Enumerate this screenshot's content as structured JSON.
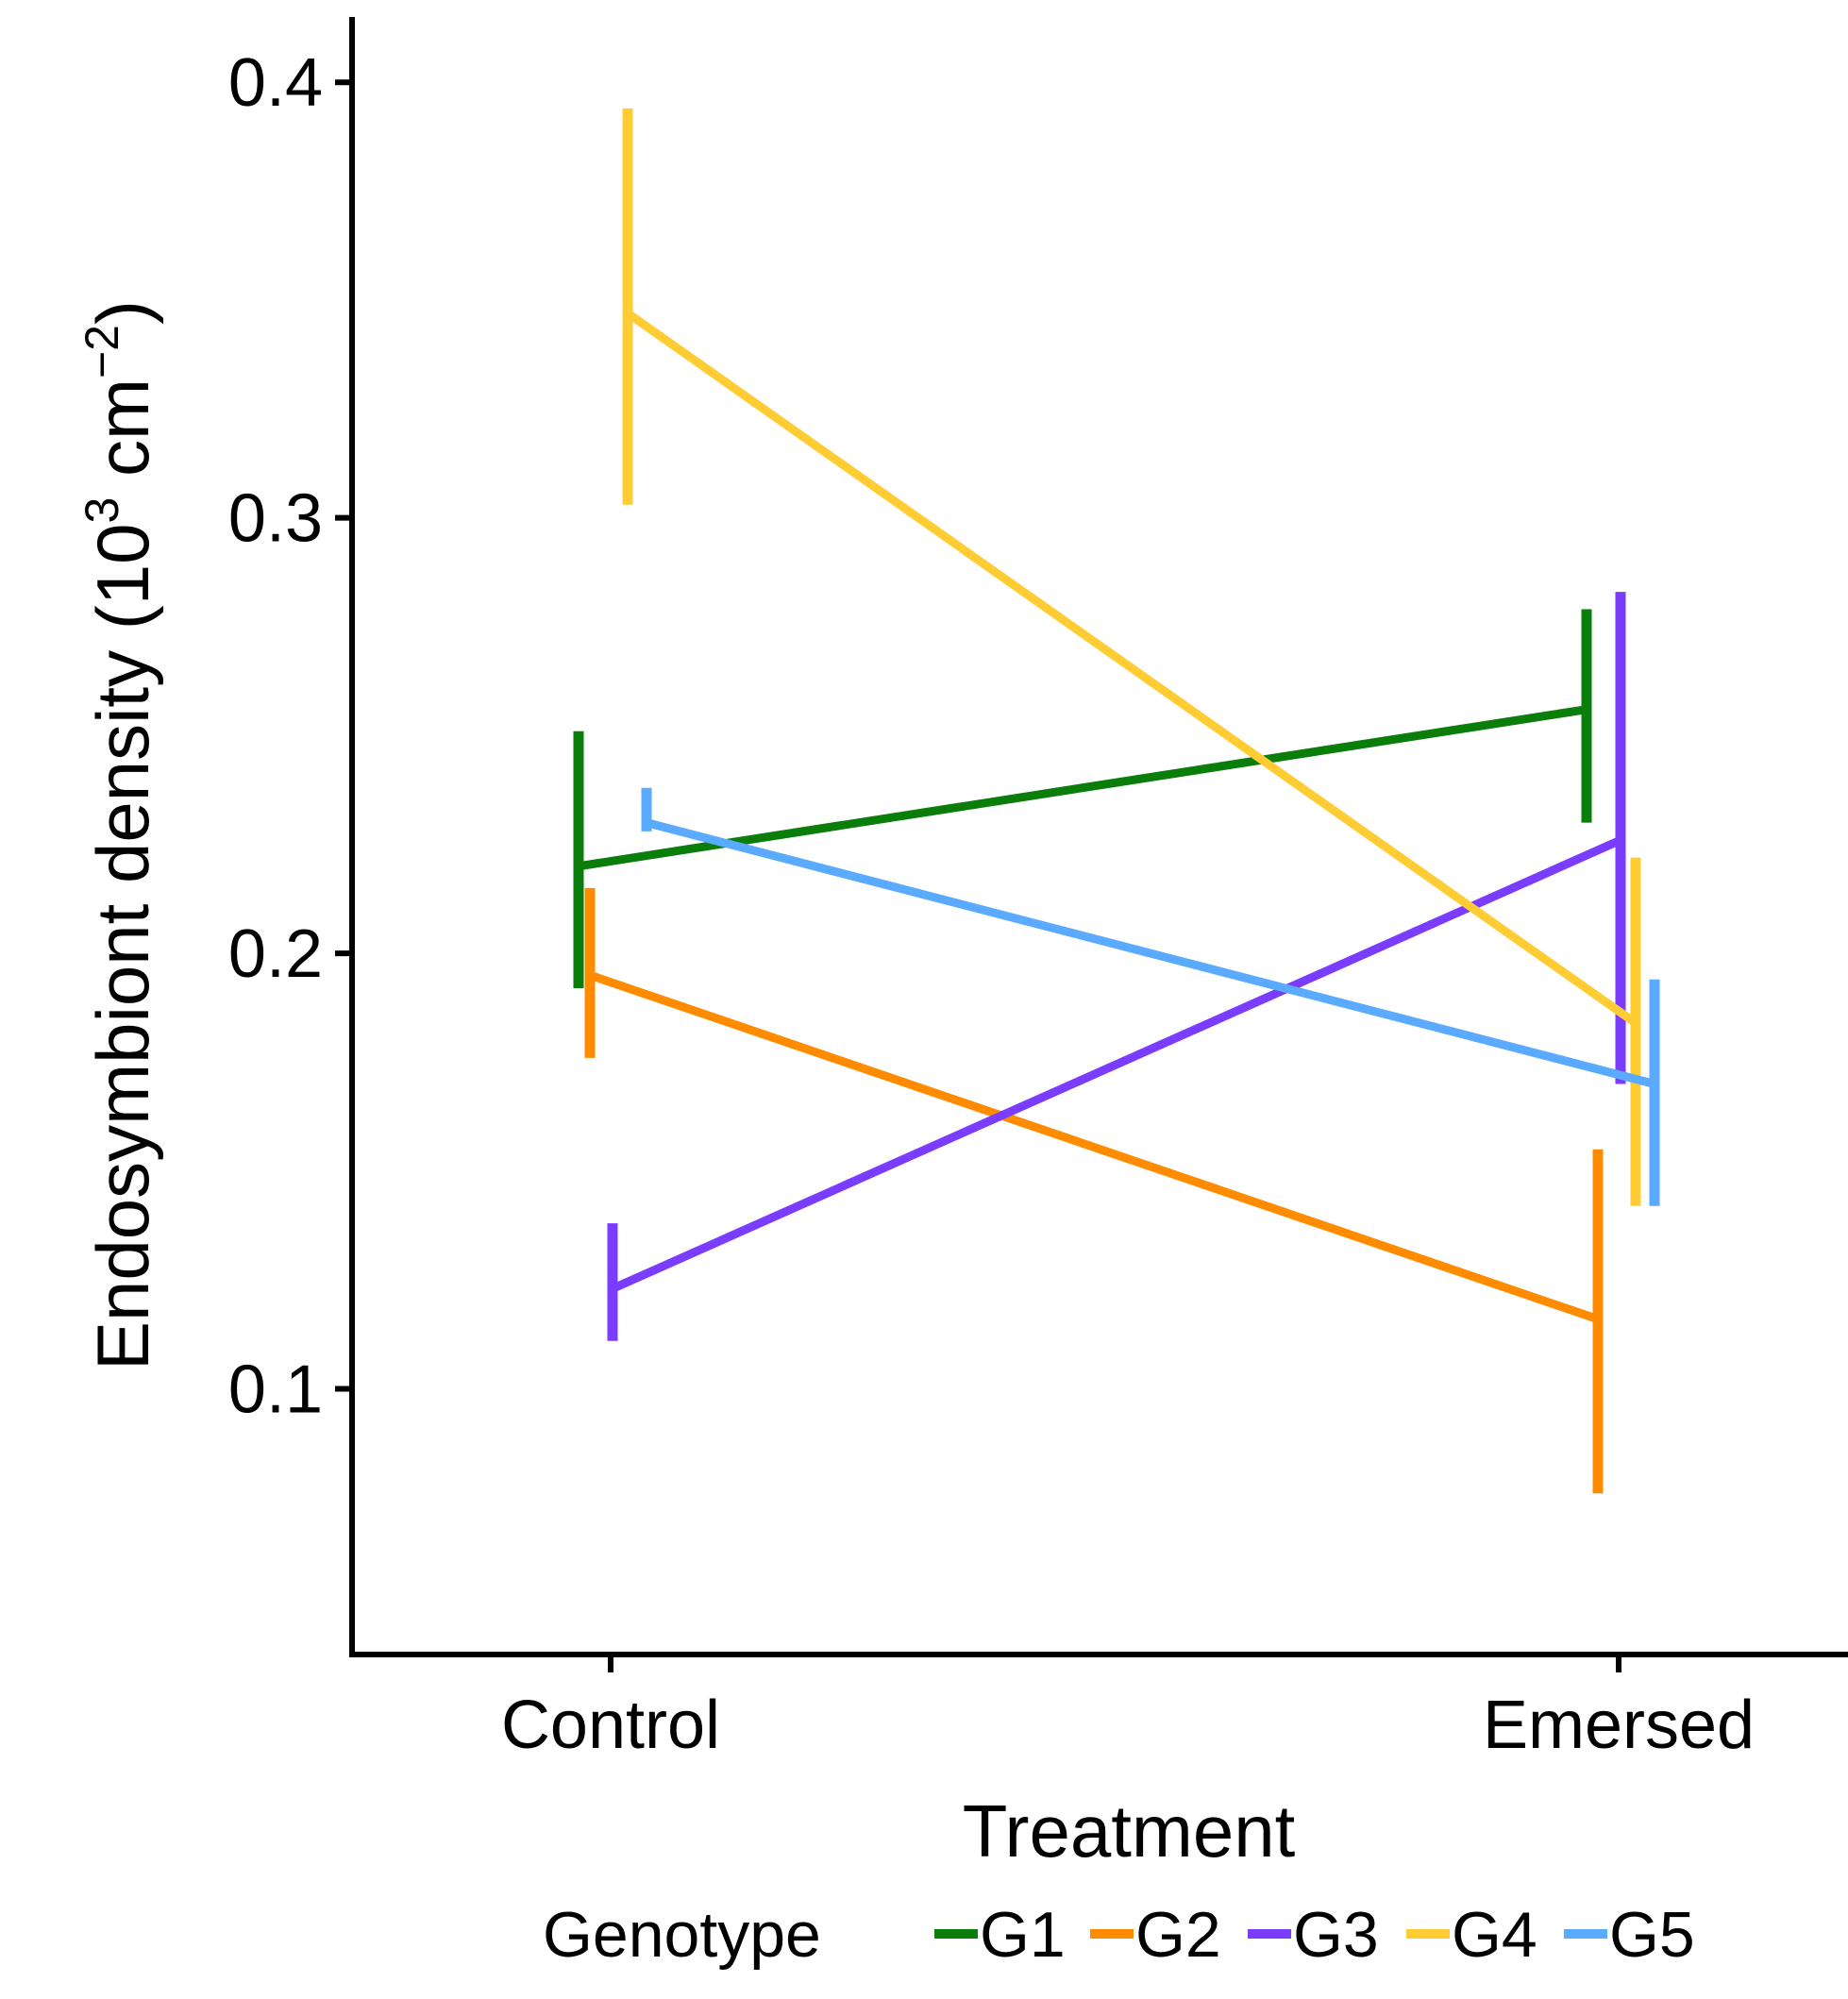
{
  "chart_data": {
    "type": "line",
    "title": "",
    "xlabel": "Treatment",
    "ylabel_main": "Endosymbiont density (10",
    "ylabel_exp1": "3",
    "ylabel_mid": " cm",
    "ylabel_exp2": "−2",
    "ylabel_close": ")",
    "categories": [
      "Control",
      "Emersed"
    ],
    "ylim": [
      0.039,
      0.415
    ],
    "yticks": [
      0.1,
      0.2,
      0.3,
      0.4
    ],
    "ytick_labels": [
      "0.1",
      "0.2",
      "0.3",
      "0.4"
    ],
    "legend": {
      "title": "Genotype",
      "position": "bottom"
    },
    "series": [
      {
        "name": "G1",
        "color": "#0a7d0a",
        "values": [
          0.22,
          0.256
        ],
        "err_low": [
          0.192,
          0.23
        ],
        "err_high": [
          0.251,
          0.279
        ]
      },
      {
        "name": "G2",
        "color": "#ff8c00",
        "values": [
          0.195,
          0.116
        ],
        "err_low": [
          0.176,
          0.076
        ],
        "err_high": [
          0.215,
          0.155
        ]
      },
      {
        "name": "G3",
        "color": "#7a3cff",
        "values": [
          0.123,
          0.226
        ],
        "err_low": [
          0.111,
          0.17
        ],
        "err_high": [
          0.138,
          0.283
        ]
      },
      {
        "name": "G4",
        "color": "#ffcc33",
        "values": [
          0.347,
          0.184
        ],
        "err_low": [
          0.303,
          0.142
        ],
        "err_high": [
          0.394,
          0.222
        ]
      },
      {
        "name": "G5",
        "color": "#5aaaff",
        "values": [
          0.23,
          0.17
        ],
        "err_low": [
          0.228,
          0.142
        ],
        "err_high": [
          0.238,
          0.194
        ]
      }
    ]
  }
}
